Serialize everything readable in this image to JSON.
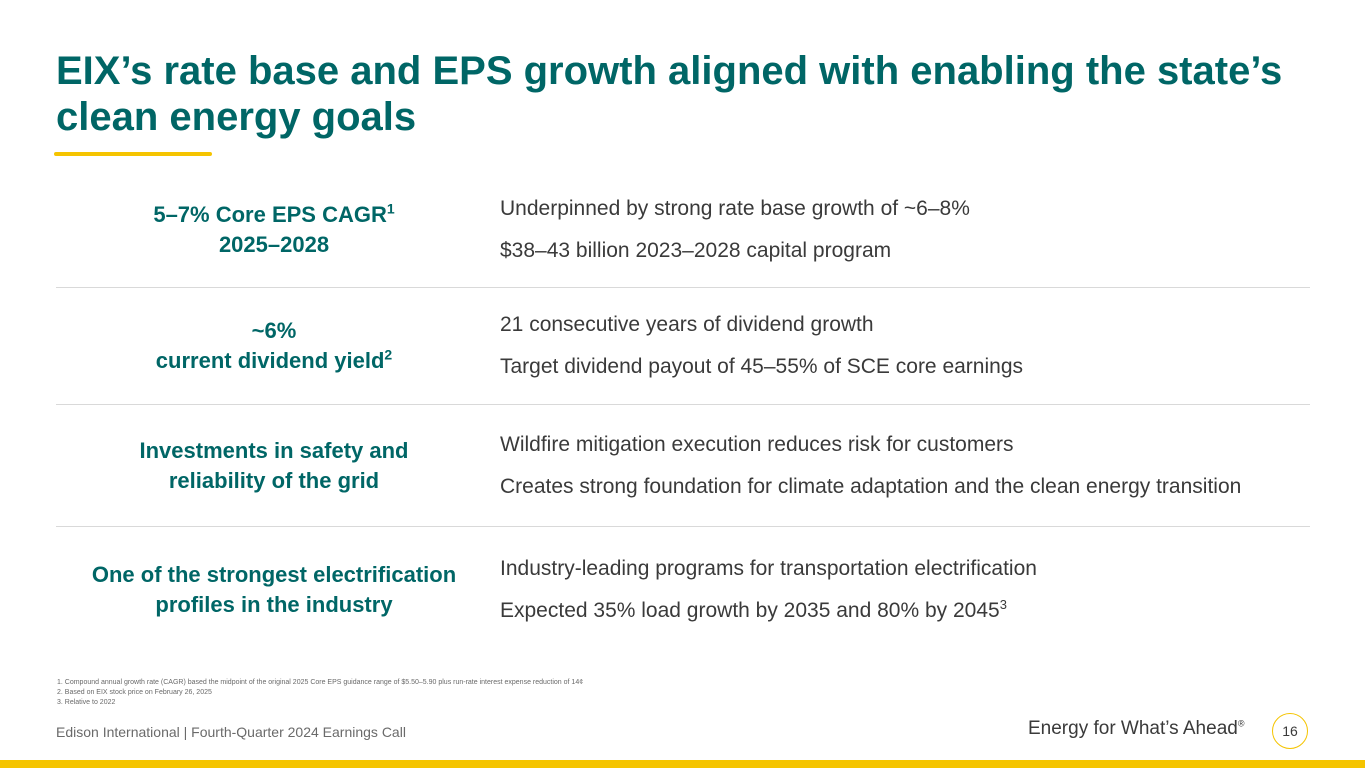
{
  "slide": {
    "title": "EIX’s rate base and EPS growth aligned with enabling the state’s clean energy goals"
  },
  "rows": [
    {
      "left_line1": "5–7% Core EPS CAGR",
      "left_line1_sup": "1",
      "left_line2": "2025–2028",
      "left_line2_sup": "",
      "right_lines": [
        {
          "text": "Underpinned by strong rate base growth of ~6–8%",
          "sup": ""
        },
        {
          "text": "$38–43 billion 2023–2028 capital program",
          "sup": ""
        }
      ]
    },
    {
      "left_line1": "~6%",
      "left_line1_sup": "",
      "left_line2": "current dividend yield",
      "left_line2_sup": "2",
      "right_lines": [
        {
          "text": "21 consecutive years of dividend growth",
          "sup": ""
        },
        {
          "text": "Target dividend payout of 45–55% of SCE core earnings",
          "sup": ""
        }
      ]
    },
    {
      "left_line1": "Investments in safety and",
      "left_line1_sup": "",
      "left_line2": "reliability of the grid",
      "left_line2_sup": "",
      "right_lines": [
        {
          "text": "Wildfire mitigation execution reduces risk for customers",
          "sup": ""
        },
        {
          "text": "Creates strong foundation for climate adaptation and the clean energy transition",
          "sup": ""
        }
      ]
    },
    {
      "left_line1": "One of the strongest electrification",
      "left_line1_sup": "",
      "left_line2": "profiles in the industry",
      "left_line2_sup": "",
      "right_lines": [
        {
          "text": "Industry-leading programs for transportation electrification",
          "sup": ""
        },
        {
          "text": "Expected 35% load growth by 2035 and 80% by 2045",
          "sup": "3"
        }
      ]
    }
  ],
  "footnotes": [
    "1.   Compound annual growth rate (CAGR) based the midpoint of the original 2025 Core EPS guidance range of $5.50–5.90 plus run-rate interest expense reduction of 14¢",
    "2.   Based on EIX stock price on February 26, 2025",
    "3.   Relative to 2022"
  ],
  "footer": {
    "left_text": "Edison International |  Fourth-Quarter 2024 Earnings Call",
    "tagline": "Energy for What’s Ahead",
    "tagline_mark": "®",
    "page_number": "16"
  },
  "colors": {
    "teal": "#006666",
    "gold": "#f5c400",
    "body_text": "#3a3a3a",
    "divider": "#d9d9d9"
  }
}
